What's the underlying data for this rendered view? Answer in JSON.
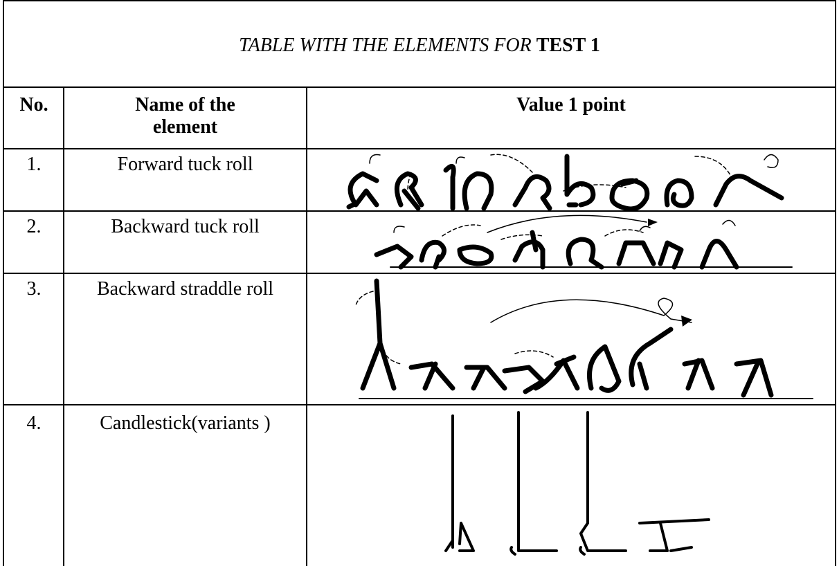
{
  "table": {
    "title": {
      "italic": "TABLE WITH THE ELEMENTS FOR",
      "bold": "TEST 1"
    },
    "header": [
      "No.",
      "Name of the element",
      "Value 1 point"
    ],
    "rows": [
      [
        "1.",
        "Forward tuck roll"
      ],
      [
        "2.",
        "Backward tuck roll"
      ],
      [
        "3.",
        "Backward straddle roll"
      ],
      [
        "4.",
        "Candlestick(variants )"
      ]
    ]
  }
}
